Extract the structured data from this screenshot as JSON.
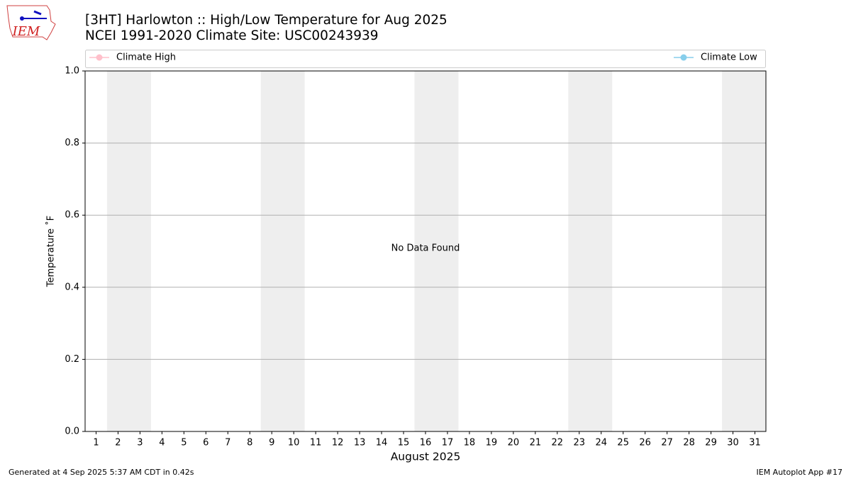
{
  "logo_text": "IEM",
  "chart_data": {
    "type": "line",
    "title": "[3HT] Harlowton :: High/Low Temperature for Aug 2025",
    "subtitle": "NCEI 1991-2020 Climate Site: USC00243939",
    "x_label": "August 2025",
    "y_label": "Temperature ˚F",
    "annotation": "No Data Found",
    "footer_left": "Generated at 4 Sep 2025 5:37 AM CDT in 0.42s",
    "footer_right": "IEM Autoplot App #17",
    "x": [],
    "series": [
      {
        "name": "Climate High",
        "color": "#ffc0cb",
        "values": []
      },
      {
        "name": "Climate Low",
        "color": "#87ceeb",
        "values": []
      }
    ],
    "xlim": [
      0.5,
      31.5
    ],
    "xticks": [
      1,
      2,
      3,
      4,
      5,
      6,
      7,
      8,
      9,
      10,
      11,
      12,
      13,
      14,
      15,
      16,
      17,
      18,
      19,
      20,
      21,
      22,
      23,
      24,
      25,
      26,
      27,
      28,
      29,
      30,
      31
    ],
    "ylim": [
      0,
      1
    ],
    "yticks": [
      {
        "value": 0,
        "label": "0.0"
      },
      0.2,
      0.4,
      0.6,
      0.8,
      {
        "value": 1,
        "label": "1.0"
      }
    ],
    "weekend_spans": [
      [
        1.5,
        3.5
      ],
      [
        8.5,
        10.5
      ],
      [
        15.5,
        17.5
      ],
      [
        22.5,
        24.5
      ],
      [
        29.5,
        31.5
      ]
    ],
    "weekend_color": "#eeeeee",
    "grid": true
  }
}
